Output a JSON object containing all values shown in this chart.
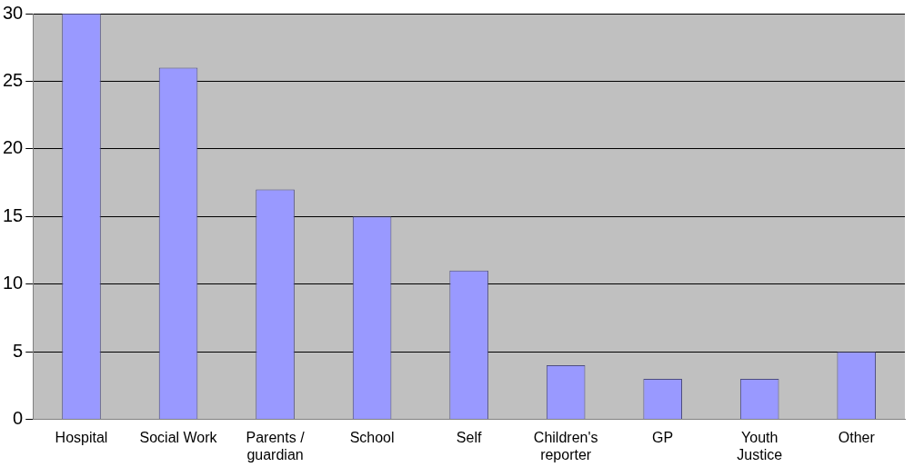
{
  "chart_data": {
    "type": "bar",
    "categories": [
      "Hospital",
      "Social Work",
      "Parents / guardian",
      "School",
      "Self",
      "Children's reporter",
      "GP",
      "Youth Justice",
      "Other"
    ],
    "values": [
      30,
      26,
      17,
      15,
      11,
      4,
      3,
      3,
      5
    ],
    "color": "#9999ff",
    "ylim": [
      0,
      30
    ],
    "yticks": [
      0,
      5,
      10,
      15,
      20,
      25,
      30
    ],
    "grid": "y",
    "legend": false
  }
}
